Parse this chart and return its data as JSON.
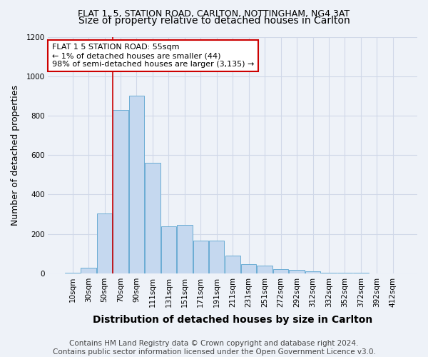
{
  "title1": "FLAT 1, 5, STATION ROAD, CARLTON, NOTTINGHAM, NG4 3AT",
  "title2": "Size of property relative to detached houses in Carlton",
  "xlabel": "Distribution of detached houses by size in Carlton",
  "ylabel": "Number of detached properties",
  "categories": [
    "10sqm",
    "30sqm",
    "50sqm",
    "70sqm",
    "90sqm",
    "111sqm",
    "131sqm",
    "151sqm",
    "171sqm",
    "191sqm",
    "211sqm",
    "231sqm",
    "251sqm",
    "272sqm",
    "292sqm",
    "312sqm",
    "332sqm",
    "352sqm",
    "372sqm",
    "392sqm",
    "412sqm"
  ],
  "values": [
    5,
    30,
    305,
    830,
    900,
    560,
    240,
    245,
    165,
    165,
    90,
    45,
    40,
    22,
    18,
    10,
    5,
    3,
    2,
    1,
    0
  ],
  "bar_color": "#c5d8ef",
  "bar_edge_color": "#6aacd4",
  "annotation_text": "FLAT 1 5 STATION ROAD: 55sqm\n← 1% of detached houses are smaller (44)\n98% of semi-detached houses are larger (3,135) →",
  "annotation_box_color": "white",
  "annotation_box_edge_color": "#cc0000",
  "vline_color": "#cc0000",
  "vline_x": 2.5,
  "ylim": [
    0,
    1200
  ],
  "yticks": [
    0,
    200,
    400,
    600,
    800,
    1000,
    1200
  ],
  "footer": "Contains HM Land Registry data © Crown copyright and database right 2024.\nContains public sector information licensed under the Open Government Licence v3.0.",
  "bg_color": "#eef2f8",
  "grid_color": "#d0d8e8",
  "title1_fontsize": 9,
  "title2_fontsize": 10,
  "xlabel_fontsize": 10,
  "ylabel_fontsize": 9,
  "tick_fontsize": 7.5,
  "footer_fontsize": 7.5,
  "annot_fontsize": 8
}
